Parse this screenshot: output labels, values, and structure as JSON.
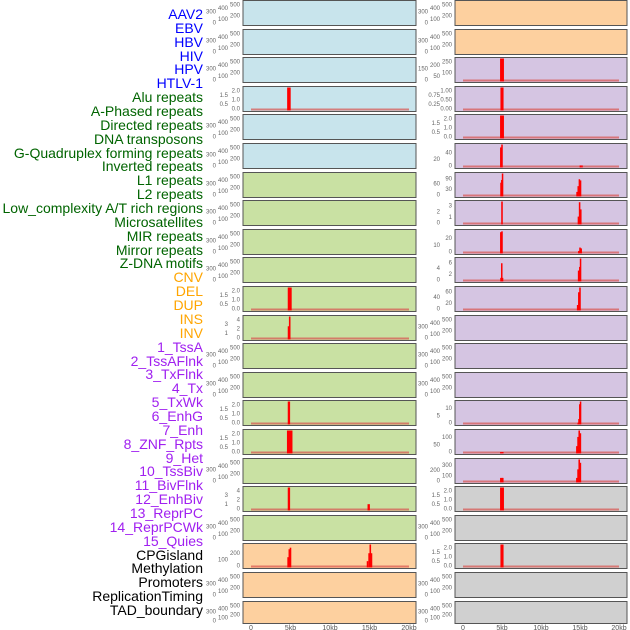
{
  "chart_data": {
    "type": "bar",
    "title": "",
    "xlabel": "",
    "ylabel": "",
    "xlim_kb": [
      0,
      20
    ],
    "x_ticks": [
      "0",
      "5kb",
      "10kb",
      "15kb",
      "20kb"
    ],
    "x_tick_values_kb": [
      0,
      5,
      10,
      15,
      20
    ],
    "bar_color": "#ff0000",
    "baseline_color": "#d9534f",
    "group_colors": {
      "virus": {
        "panel": "#c8e4ec",
        "label": "#0000ff"
      },
      "repeat": {
        "panel": "#c9e1a3",
        "label": "#006400"
      },
      "sv": {
        "panel": "#fdd09f",
        "label": "#ffa500"
      },
      "chromhmm": {
        "panel": "#d5c5e2",
        "label": "#a020f0"
      },
      "other": {
        "panel": "#d0d0d0",
        "label": "#000000"
      }
    },
    "panels": [
      {
        "label": "AAV2",
        "group": "virus",
        "ylim": [
          0,
          500
        ],
        "yticks": [
          "0",
          "100",
          "200",
          "300",
          "400",
          "500"
        ],
        "peaks": []
      },
      {
        "label": "EBV",
        "group": "virus",
        "ylim": [
          0,
          500
        ],
        "yticks": [
          "0",
          "100",
          "200",
          "300",
          "400",
          "500"
        ],
        "peaks": []
      },
      {
        "label": "HBV",
        "group": "virus",
        "ylim": [
          0,
          500
        ],
        "yticks": [
          "0",
          "100",
          "200",
          "300",
          "400",
          "500"
        ],
        "peaks": []
      },
      {
        "label": "HIV",
        "group": "virus",
        "ylim": [
          0,
          2
        ],
        "yticks": [
          "0.0",
          "0.5",
          "1.0",
          "1.5",
          "2.0"
        ],
        "baseline": true,
        "peaks": [
          [
            4.8,
            2
          ]
        ],
        "bw": 0.45
      },
      {
        "label": "HPV",
        "group": "virus",
        "ylim": [
          0,
          500
        ],
        "yticks": [
          "0",
          "100",
          "200",
          "300",
          "400",
          "500"
        ],
        "peaks": []
      },
      {
        "label": "HTLV-1",
        "group": "virus",
        "ylim": [
          0,
          500
        ],
        "yticks": [
          "0",
          "100",
          "200",
          "300",
          "400",
          "500"
        ],
        "peaks": []
      },
      {
        "label": "Alu repeats",
        "group": "repeat",
        "ylim": [
          0,
          500
        ],
        "yticks": [
          "0",
          "100",
          "200",
          "300",
          "400",
          "500"
        ],
        "peaks": []
      },
      {
        "label": "A-Phased repeats",
        "group": "repeat",
        "ylim": [
          0,
          500
        ],
        "yticks": [
          "0",
          "100",
          "200",
          "300",
          "400",
          "500"
        ],
        "peaks": []
      },
      {
        "label": "Directed repeats",
        "group": "repeat",
        "ylim": [
          0,
          500
        ],
        "yticks": [
          "0",
          "100",
          "200",
          "300",
          "400",
          "500"
        ],
        "peaks": []
      },
      {
        "label": "DNA transposons",
        "group": "repeat",
        "ylim": [
          0,
          500
        ],
        "yticks": [
          "0",
          "100",
          "200",
          "300",
          "400",
          "500"
        ],
        "peaks": []
      },
      {
        "label": "G-Quadruplex forming repeats",
        "group": "repeat",
        "ylim": [
          0,
          2
        ],
        "yticks": [
          "0.0",
          "0.5",
          "1.0",
          "1.5",
          "2.0"
        ],
        "baseline": true,
        "peaks": [
          [
            4.9,
            2
          ]
        ],
        "bw": 0.5
      },
      {
        "label": "Inverted repeats",
        "group": "repeat",
        "ylim": [
          0,
          4
        ],
        "yticks": [
          "0",
          "1",
          "2",
          "3",
          "4"
        ],
        "baseline": true,
        "peaks": [
          [
            4.75,
            2.3
          ],
          [
            4.9,
            4
          ]
        ],
        "bw": 0.2
      },
      {
        "label": "L1 repeats",
        "group": "repeat",
        "ylim": [
          0,
          500
        ],
        "yticks": [
          "0",
          "100",
          "200",
          "300",
          "400",
          "500"
        ],
        "peaks": []
      },
      {
        "label": "L2 repeats",
        "group": "repeat",
        "ylim": [
          0,
          500
        ],
        "yticks": [
          "0",
          "100",
          "200",
          "300",
          "400",
          "500"
        ],
        "peaks": []
      },
      {
        "label": "Low_complexity A/T rich regions",
        "group": "repeat",
        "ylim": [
          0,
          2
        ],
        "yticks": [
          "0.0",
          "0.5",
          "1.0",
          "1.5",
          "2.0"
        ],
        "baseline": true,
        "peaks": [
          [
            4.8,
            2
          ]
        ],
        "bw": 0.3
      },
      {
        "label": "Microsatellites",
        "group": "repeat",
        "ylim": [
          0,
          2
        ],
        "yticks": [
          "0.0",
          "0.5",
          "1.0",
          "1.5",
          "2.0"
        ],
        "baseline": true,
        "peaks": [
          [
            4.9,
            2
          ]
        ],
        "bw": 0.7
      },
      {
        "label": "MIR repeats",
        "group": "repeat",
        "ylim": [
          0,
          500
        ],
        "yticks": [
          "0",
          "100",
          "200",
          "300",
          "400",
          "500"
        ],
        "peaks": []
      },
      {
        "label": "Mirror repeats",
        "group": "repeat",
        "ylim": [
          0,
          4
        ],
        "yticks": [
          "0",
          "1",
          "2",
          "3",
          "4"
        ],
        "baseline": true,
        "peaks": [
          [
            4.8,
            4
          ],
          [
            14.9,
            1.1
          ]
        ],
        "bw": 0.3
      },
      {
        "label": "Z-DNA motifs",
        "group": "repeat",
        "ylim": [
          0,
          500
        ],
        "yticks": [
          "0",
          "100",
          "200",
          "300",
          "400",
          "500"
        ],
        "peaks": []
      },
      {
        "label": "CNV",
        "group": "sv",
        "ylim": [
          0,
          290
        ],
        "yticks": [
          "0",
          "100",
          "200"
        ],
        "baseline": true,
        "peaks": [
          [
            4.7,
            130
          ],
          [
            4.85,
            230
          ],
          [
            5.0,
            250
          ],
          [
            14.75,
            80
          ],
          [
            14.95,
            180
          ],
          [
            15.1,
            290
          ],
          [
            15.25,
            180
          ]
        ],
        "bw": 0.2
      },
      {
        "label": "DEL",
        "group": "sv",
        "ylim": [
          0,
          500
        ],
        "yticks": [
          "0",
          "100",
          "200",
          "300",
          "400",
          "500"
        ],
        "peaks": []
      },
      {
        "label": "DUP",
        "group": "sv",
        "ylim": [
          0,
          500
        ],
        "yticks": [
          "0",
          "100",
          "200",
          "300",
          "400",
          "500"
        ],
        "peaks": []
      },
      {
        "label": "INS",
        "group": "sv",
        "ylim": [
          0,
          500
        ],
        "yticks": [
          "0",
          "100",
          "200",
          "300",
          "400",
          "500"
        ],
        "peaks": []
      },
      {
        "label": "INV",
        "group": "sv",
        "ylim": [
          0,
          500
        ],
        "yticks": [
          "0",
          "100",
          "200",
          "300",
          "400",
          "500"
        ],
        "peaks": []
      },
      {
        "label": "1_TssA",
        "group": "chromhmm",
        "ylim": [
          0,
          250
        ],
        "yticks": [
          "0",
          "50",
          "100",
          "150",
          "200",
          "250"
        ],
        "baseline": true,
        "peaks": [
          [
            5.0,
            250
          ]
        ],
        "bw": 0.5
      },
      {
        "label": "2_TssAFlnk",
        "group": "chromhmm",
        "ylim": [
          0,
          1
        ],
        "yticks": [
          "0.00",
          "0.25",
          "0.50",
          "0.75",
          "1.00"
        ],
        "baseline": true,
        "peaks": [
          [
            5.0,
            1
          ]
        ],
        "bw": 0.4
      },
      {
        "label": "3_TxFlnk",
        "group": "chromhmm",
        "ylim": [
          0,
          2
        ],
        "yticks": [
          "0.0",
          "0.5",
          "1.0",
          "1.5",
          "2.0"
        ],
        "baseline": true,
        "peaks": [
          [
            5.0,
            2
          ]
        ],
        "bw": 0.5
      },
      {
        "label": "4_Tx",
        "group": "chromhmm",
        "ylim": [
          0,
          55
        ],
        "yticks": [
          "0",
          "20",
          "40"
        ],
        "baseline": true,
        "peaks": [
          [
            4.85,
            48
          ],
          [
            5.0,
            55
          ],
          [
            15.05,
            5
          ],
          [
            15.25,
            5
          ]
        ],
        "bw": 0.2
      },
      {
        "label": "5_TxWk",
        "group": "chromhmm",
        "ylim": [
          0,
          100
        ],
        "yticks": [
          "0",
          "30",
          "60",
          "90"
        ],
        "baseline": true,
        "peaks": [
          [
            4.85,
            60
          ],
          [
            4.95,
            72
          ],
          [
            5.05,
            100
          ],
          [
            14.6,
            20
          ],
          [
            14.75,
            45
          ],
          [
            14.9,
            75
          ],
          [
            15.05,
            70
          ]
        ],
        "bw": 0.15
      },
      {
        "label": "6_EnhG",
        "group": "chromhmm",
        "ylim": [
          0,
          3.2
        ],
        "yticks": [
          "0",
          "1",
          "2",
          "3"
        ],
        "baseline": true,
        "peaks": [
          [
            5.0,
            3.2
          ],
          [
            14.8,
            1.1
          ],
          [
            14.95,
            3.1
          ],
          [
            15.1,
            2.1
          ]
        ],
        "bw": 0.2
      },
      {
        "label": "7_Enh",
        "group": "chromhmm",
        "ylim": [
          0,
          27
        ],
        "yticks": [
          "0",
          "10",
          "20"
        ],
        "baseline": true,
        "peaks": [
          [
            4.85,
            25
          ],
          [
            5.0,
            26
          ],
          [
            14.85,
            3
          ],
          [
            15.0,
            7
          ],
          [
            15.15,
            6
          ]
        ],
        "bw": 0.2
      },
      {
        "label": "8_ZNF_Rpts",
        "group": "chromhmm",
        "ylim": [
          0,
          6.3
        ],
        "yticks": [
          "0",
          "2",
          "4",
          "6"
        ],
        "baseline": true,
        "peaks": [
          [
            4.85,
            1
          ],
          [
            4.95,
            5
          ],
          [
            5.05,
            1
          ],
          [
            14.8,
            3
          ],
          [
            14.95,
            4
          ],
          [
            15.05,
            6.3
          ]
        ],
        "bw": 0.15
      },
      {
        "label": "9_Het",
        "group": "chromhmm",
        "ylim": [
          0,
          63
        ],
        "yticks": [
          "0",
          "20",
          "40",
          "60"
        ],
        "baseline": true,
        "peaks": [
          [
            14.7,
            15
          ],
          [
            14.85,
            50
          ],
          [
            15.0,
            63
          ]
        ],
        "bw": 0.2
      },
      {
        "label": "10_TssBiv",
        "group": "chromhmm",
        "ylim": [
          0,
          500
        ],
        "yticks": [
          "0",
          "100",
          "200",
          "300",
          "400",
          "500"
        ],
        "peaks": []
      },
      {
        "label": "11_BivFlnk",
        "group": "chromhmm",
        "ylim": [
          0,
          500
        ],
        "yticks": [
          "0",
          "100",
          "200",
          "300",
          "400",
          "500"
        ],
        "peaks": []
      },
      {
        "label": "12_EnhBiv",
        "group": "chromhmm",
        "ylim": [
          0,
          500
        ],
        "yticks": [
          "0",
          "100",
          "200",
          "300",
          "400",
          "500"
        ],
        "peaks": []
      },
      {
        "label": "13_ReprPC",
        "group": "chromhmm",
        "ylim": [
          0,
          12.5
        ],
        "yticks": [
          "0",
          "5",
          "10"
        ],
        "baseline": true,
        "peaks": [
          [
            14.75,
            1
          ],
          [
            14.85,
            3
          ],
          [
            14.95,
            11
          ],
          [
            15.05,
            12.5
          ]
        ],
        "bw": 0.15
      },
      {
        "label": "14_ReprPCWk",
        "group": "chromhmm",
        "ylim": [
          0,
          125
        ],
        "yticks": [
          "0",
          "50",
          "100"
        ],
        "baseline": true,
        "peaks": [
          [
            4.85,
            8
          ],
          [
            5.0,
            8
          ],
          [
            5.1,
            8
          ],
          [
            14.6,
            40
          ],
          [
            14.75,
            90
          ],
          [
            14.9,
            125
          ],
          [
            15.05,
            110
          ]
        ],
        "bw": 0.2
      },
      {
        "label": "15_Quies",
        "group": "chromhmm",
        "ylim": [
          0,
          350
        ],
        "yticks": [
          "0",
          "100",
          "200",
          "300"
        ],
        "baseline": true,
        "peaks": [
          [
            4.85,
            70
          ],
          [
            5.0,
            70
          ],
          [
            5.1,
            70
          ],
          [
            14.6,
            70
          ],
          [
            14.75,
            200
          ],
          [
            14.9,
            350
          ],
          [
            15.05,
            300
          ]
        ],
        "bw": 0.2
      },
      {
        "label": "CPGisland",
        "group": "other",
        "ylim": [
          0,
          2
        ],
        "yticks": [
          "0.0",
          "0.5",
          "1.0",
          "1.5",
          "2.0"
        ],
        "baseline": true,
        "peaks": [
          [
            5.0,
            2
          ]
        ],
        "bw": 0.5
      },
      {
        "label": "Methylation",
        "group": "other",
        "ylim": [
          0,
          500
        ],
        "yticks": [
          "0",
          "100",
          "200",
          "300",
          "400",
          "500"
        ],
        "peaks": []
      },
      {
        "label": "Promoters",
        "group": "other",
        "ylim": [
          0,
          2
        ],
        "yticks": [
          "0.0",
          "0.5",
          "1.0",
          "1.5",
          "2.0"
        ],
        "baseline": true,
        "peaks": [
          [
            5.0,
            2
          ]
        ],
        "bw": 0.4
      },
      {
        "label": "ReplicationTiming",
        "group": "other",
        "ylim": [
          0,
          500
        ],
        "yticks": [
          "0",
          "100",
          "200",
          "300",
          "400",
          "500"
        ],
        "peaks": []
      },
      {
        "label": "TAD_boundary",
        "group": "other",
        "ylim": [
          0,
          500
        ],
        "yticks": [
          "0",
          "100",
          "200",
          "300",
          "400",
          "500"
        ],
        "peaks": []
      }
    ]
  }
}
